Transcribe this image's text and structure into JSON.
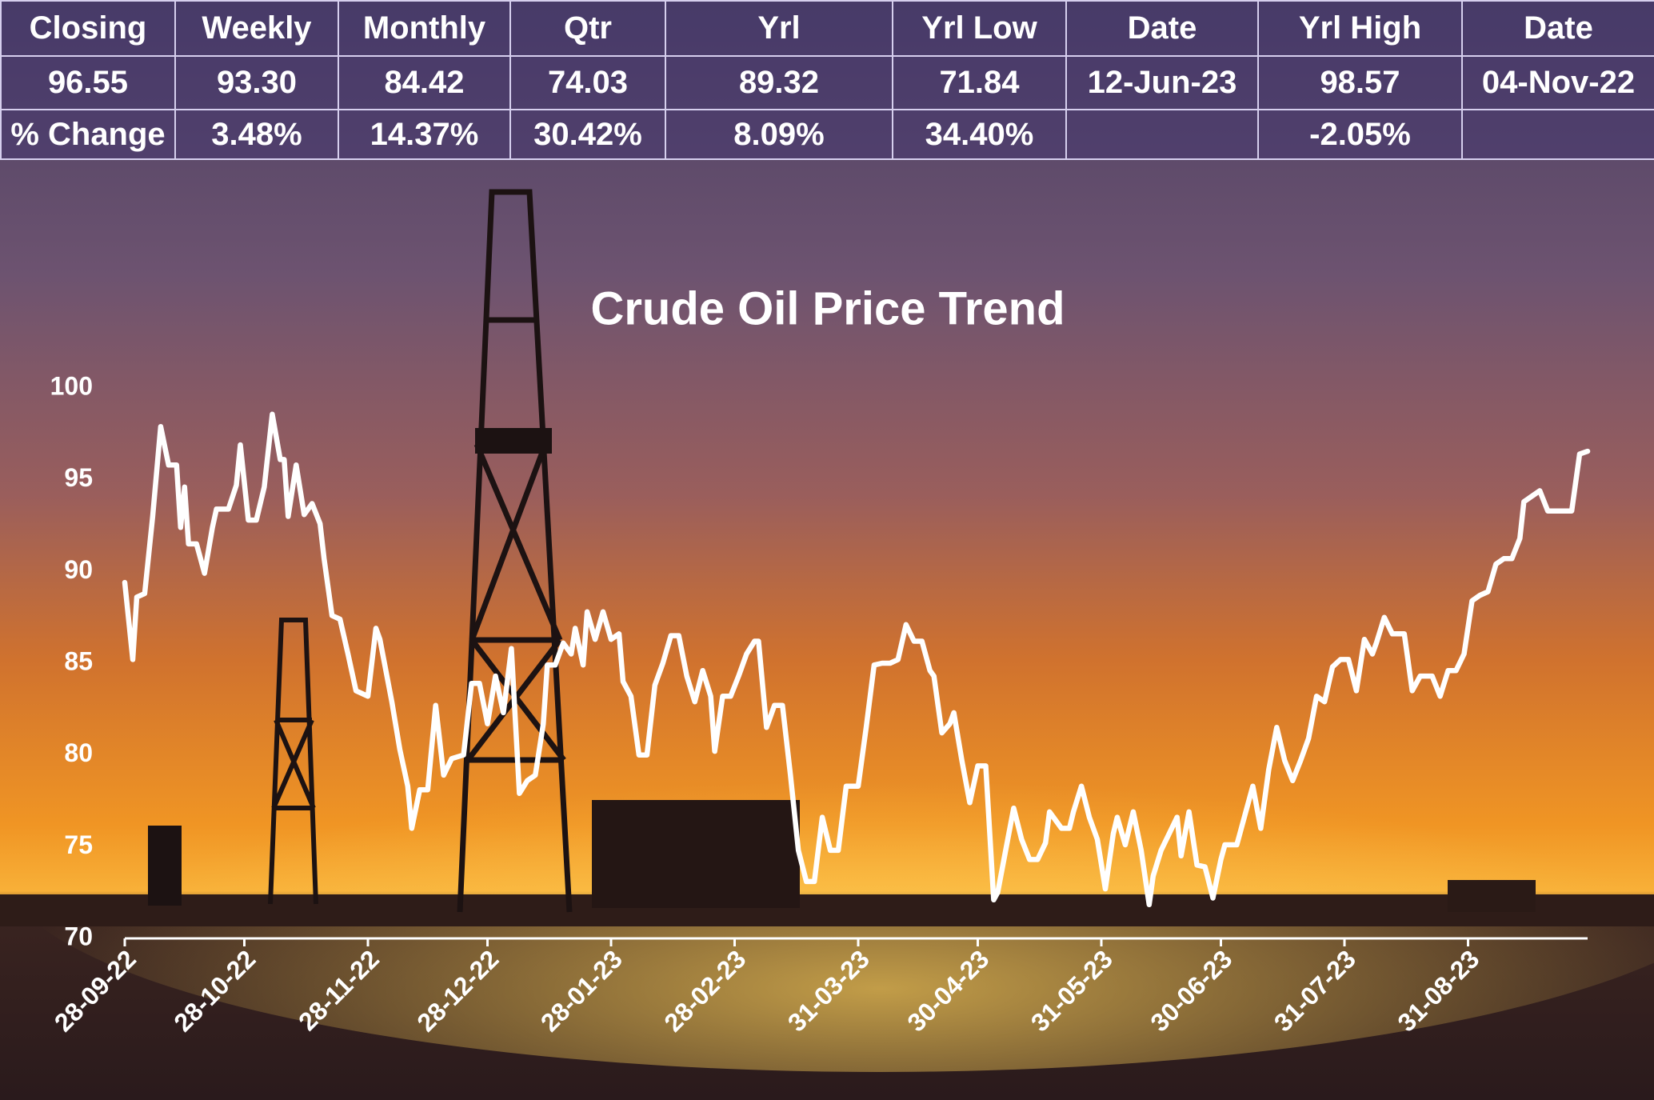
{
  "table": {
    "header": [
      "Closing",
      "Weekly",
      "Monthly",
      "Qtr",
      "Yrl",
      "Yrl Low",
      "Date",
      "Yrl High",
      "Date"
    ],
    "rows": [
      [
        "96.55",
        "93.30",
        "84.42",
        "74.03",
        "89.32",
        "71.84",
        "12-Jun-23",
        "98.57",
        "04-Nov-22"
      ],
      [
        "% Change",
        "3.48%",
        "14.37%",
        "30.42%",
        "8.09%",
        "34.40%",
        null,
        "-2.05%",
        null
      ]
    ]
  },
  "chart_data": {
    "type": "line",
    "title": "Crude Oil Price Trend",
    "color": "#ffffff",
    "x": [
      "28-09-22",
      "30-09-22",
      "01-10-22",
      "03-10-22",
      "05-10-22",
      "07-10-22",
      "09-10-22",
      "11-10-22",
      "12-10-22",
      "13-10-22",
      "14-10-22",
      "16-10-22",
      "18-10-22",
      "20-10-22",
      "21-10-22",
      "24-10-22",
      "26-10-22",
      "27-10-22",
      "29-10-22",
      "31-10-22",
      "02-11-22",
      "04-11-22",
      "06-11-22",
      "07-11-22",
      "08-11-22",
      "10-11-22",
      "12-11-22",
      "14-11-22",
      "16-11-22",
      "17-11-22",
      "19-11-22",
      "21-11-22",
      "23-11-22",
      "25-11-22",
      "28-11-22",
      "30-11-22",
      "01-12-22",
      "04-12-22",
      "06-12-22",
      "08-12-22",
      "09-12-22",
      "11-12-22",
      "13-12-22",
      "15-12-22",
      "17-12-22",
      "19-12-22",
      "22-12-22",
      "24-12-22",
      "26-12-22",
      "28-12-22",
      "30-12-22",
      "01-01-23",
      "03-01-23",
      "05-01-23",
      "07-01-23",
      "09-01-23",
      "11-01-23",
      "12-01-23",
      "14-01-23",
      "16-01-23",
      "18-01-23",
      "19-01-23",
      "21-01-23",
      "22-01-23",
      "24-01-23",
      "26-01-23",
      "28-01-23",
      "30-01-23",
      "31-01-23",
      "02-02-23",
      "04-02-23",
      "06-02-23",
      "08-02-23",
      "10-02-23",
      "12-02-23",
      "14-02-23",
      "16-02-23",
      "18-02-23",
      "20-02-23",
      "22-02-23",
      "23-02-23",
      "25-02-23",
      "27-02-23",
      "01-03-23",
      "03-03-23",
      "05-03-23",
      "06-03-23",
      "08-03-23",
      "10-03-23",
      "12-03-23",
      "14-03-23",
      "16-03-23",
      "18-03-23",
      "20-03-23",
      "22-03-23",
      "24-03-23",
      "26-03-23",
      "28-03-23",
      "31-03-23",
      "02-04-23",
      "04-04-23",
      "06-04-23",
      "08-04-23",
      "10-04-23",
      "12-04-23",
      "14-04-23",
      "16-04-23",
      "18-04-23",
      "19-04-23",
      "21-04-23",
      "23-04-23",
      "24-04-23",
      "26-04-23",
      "28-04-23",
      "30-04-23",
      "02-05-23",
      "04-05-23",
      "05-05-23",
      "07-05-23",
      "09-05-23",
      "11-05-23",
      "13-05-23",
      "15-05-23",
      "17-05-23",
      "18-05-23",
      "21-05-23",
      "23-05-23",
      "24-05-23",
      "26-05-23",
      "28-05-23",
      "30-05-23",
      "01-06-23",
      "03-06-23",
      "04-06-23",
      "06-06-23",
      "08-06-23",
      "10-06-23",
      "12-06-23",
      "13-06-23",
      "15-06-23",
      "17-06-23",
      "19-06-23",
      "20-06-23",
      "22-06-23",
      "24-06-23",
      "26-06-23",
      "28-06-23",
      "30-06-23",
      "01-07-23",
      "04-07-23",
      "06-07-23",
      "08-07-23",
      "10-07-23",
      "12-07-23",
      "14-07-23",
      "16-07-23",
      "18-07-23",
      "20-07-23",
      "22-07-23",
      "24-07-23",
      "26-07-23",
      "28-07-23",
      "30-07-23",
      "01-08-23",
      "03-08-23",
      "05-08-23",
      "07-08-23",
      "08-08-23",
      "10-08-23",
      "12-08-23",
      "15-08-23",
      "17-08-23",
      "19-08-23",
      "21-08-23",
      "22-08-23",
      "24-08-23",
      "26-08-23",
      "28-08-23",
      "30-08-23",
      "01-09-23",
      "03-09-23",
      "05-09-23",
      "07-09-23",
      "09-09-23",
      "11-09-23",
      "13-09-23",
      "14-09-23",
      "16-09-23",
      "18-09-23",
      "20-09-23",
      "22-09-23",
      "24-09-23",
      "26-09-23",
      "28-09-23",
      "30-09-23"
    ],
    "values": [
      89.4,
      85.2,
      88.6,
      88.8,
      93.0,
      97.9,
      95.8,
      95.8,
      92.4,
      94.6,
      91.5,
      91.5,
      89.9,
      92.4,
      93.4,
      93.4,
      94.7,
      96.9,
      92.8,
      92.8,
      94.6,
      98.57,
      96.1,
      96.1,
      93.0,
      95.8,
      93.1,
      93.7,
      92.6,
      90.7,
      87.6,
      87.4,
      85.5,
      83.5,
      83.2,
      86.9,
      86.3,
      82.9,
      80.3,
      78.3,
      76.0,
      78.1,
      78.1,
      82.7,
      78.9,
      79.8,
      80.0,
      83.9,
      83.9,
      81.7,
      84.3,
      82.3,
      85.8,
      77.9,
      78.6,
      78.9,
      81.7,
      84.9,
      84.9,
      86.1,
      85.5,
      86.9,
      84.9,
      87.8,
      86.3,
      87.8,
      86.3,
      86.6,
      84.0,
      83.2,
      80.0,
      80.0,
      83.8,
      85.0,
      86.5,
      86.5,
      84.3,
      82.9,
      84.6,
      83.2,
      80.2,
      83.2,
      83.2,
      84.3,
      85.5,
      86.2,
      86.2,
      81.5,
      82.7,
      82.7,
      78.9,
      74.8,
      73.1,
      73.1,
      76.6,
      74.8,
      74.8,
      78.3,
      78.3,
      81.5,
      84.9,
      85.0,
      85.0,
      85.2,
      87.1,
      86.2,
      86.2,
      84.6,
      84.3,
      81.2,
      81.7,
      82.3,
      79.7,
      77.4,
      79.4,
      79.4,
      72.1,
      72.5,
      74.8,
      77.1,
      75.4,
      74.3,
      74.3,
      75.2,
      76.9,
      76.0,
      76.0,
      76.9,
      78.3,
      76.6,
      75.4,
      72.7,
      75.7,
      76.6,
      75.1,
      76.9,
      74.8,
      71.84,
      73.4,
      74.8,
      75.7,
      76.6,
      74.5,
      76.9,
      74.0,
      73.9,
      72.2,
      74.3,
      75.1,
      75.1,
      76.7,
      78.3,
      76.0,
      79.2,
      81.5,
      79.7,
      78.6,
      79.7,
      80.9,
      83.2,
      82.9,
      84.8,
      85.2,
      85.2,
      83.5,
      86.3,
      85.5,
      86.1,
      87.5,
      86.6,
      86.6,
      83.5,
      84.3,
      84.3,
      84.3,
      83.2,
      84.6,
      84.6,
      85.5,
      88.4,
      88.7,
      88.9,
      90.4,
      90.7,
      90.7,
      91.8,
      93.8,
      94.1,
      94.4,
      93.3,
      93.3,
      93.3,
      93.3,
      96.4,
      96.55
    ],
    "xlim": [
      "28-09-22",
      "30-09-23"
    ],
    "xticks": [
      "28-09-22",
      "28-10-22",
      "28-11-22",
      "28-12-22",
      "28-01-23",
      "28-02-23",
      "31-03-23",
      "30-04-23",
      "31-05-23",
      "30-06-23",
      "31-07-23",
      "31-08-23"
    ],
    "ylim": [
      70,
      100
    ],
    "yticks": [
      70,
      75,
      80,
      85,
      90,
      95,
      100
    ]
  }
}
